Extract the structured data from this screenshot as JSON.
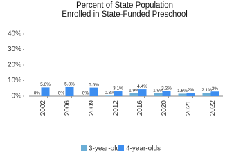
{
  "chart_data": {
    "type": "bar",
    "title": [
      "Percent of State Population",
      "Enrolled in State-Funded Preschool"
    ],
    "categories": [
      "2002",
      "2006",
      "2009",
      "2012",
      "2016",
      "2020",
      "2021",
      "2022"
    ],
    "series": [
      {
        "name": "3-year-olds",
        "color": "#6baed6",
        "values": [
          0,
          0,
          0,
          0.3,
          1.9,
          1.9,
          1.6,
          2.1
        ],
        "value_labels": [
          "0%",
          "0%",
          "0%",
          "0.3%",
          "1.9%",
          "1.9%",
          "1.6%",
          "2.1%"
        ]
      },
      {
        "name": "4-year-olds",
        "color": "#3d8ef0",
        "values": [
          5.6,
          5.8,
          5.5,
          3.1,
          4.4,
          3.2,
          2,
          3
        ],
        "value_labels": [
          "5.6%",
          "5.8%",
          "5.5%",
          "3.1%",
          "4.4%",
          "3.2%",
          "2%",
          "3%"
        ]
      }
    ],
    "ylim": [
      0,
      44
    ],
    "yticks": [
      {
        "value": 0,
        "label": "0%"
      },
      {
        "value": 10,
        "label": "10%"
      },
      {
        "value": 20,
        "label": "20%"
      },
      {
        "value": 30,
        "label": "30%"
      },
      {
        "value": 40,
        "label": "40%"
      }
    ]
  }
}
